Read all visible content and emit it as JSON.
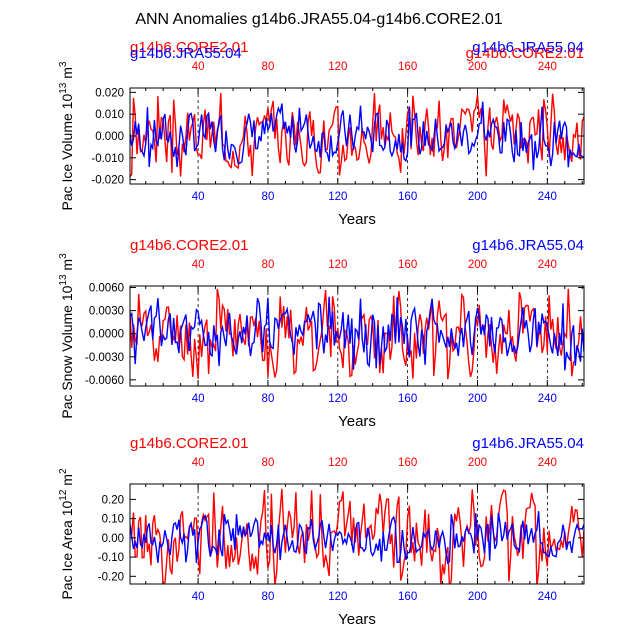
{
  "figure_title": "ANN Anomalies g14b6.JRA55.04-g14b6.CORE2.01",
  "colors": {
    "core": "#ff0000",
    "jra": "#0000ff",
    "axis": "#000000"
  },
  "chart_data": [
    {
      "type": "line",
      "ylabel": "Pac Ice Volume 10",
      "ylabel_exp": "13",
      "ylabel_unit": " m",
      "ylabel_unit_exp": "3",
      "xlabel": "Years",
      "xlim": [
        1,
        261
      ],
      "ylim": [
        -0.022,
        0.022
      ],
      "yticks": [
        -0.02,
        -0.01,
        0.0,
        0.01,
        0.02
      ],
      "ytick_labels": [
        "-0.020",
        "-0.010",
        "0.000",
        "0.010",
        "0.020"
      ],
      "xticks": [
        40,
        80,
        120,
        160,
        200,
        240
      ],
      "xtick_labels": [
        "40",
        "80",
        "120",
        "160",
        "200",
        "240"
      ],
      "vlines": [
        40,
        80,
        120,
        160,
        200,
        240
      ],
      "legend_left": "g14b6.CORE2.01",
      "legend_left_overlap": "g14b6.JRA55.04",
      "legend_right": "g14b6.JRA55.04",
      "legend_right_overlap": "g14b6.CORE2.01",
      "series": [
        {
          "name": "g14b6.CORE2.01",
          "color": "core",
          "amp": 0.02,
          "seed": 3
        },
        {
          "name": "g14b6.JRA55.04",
          "color": "jra",
          "amp": 0.016,
          "seed": 7
        }
      ]
    },
    {
      "type": "line",
      "ylabel": "Pac Snow Volume 10",
      "ylabel_exp": "13",
      "ylabel_unit": " m",
      "ylabel_unit_exp": "3",
      "xlabel": "Years",
      "xlim": [
        1,
        261
      ],
      "ylim": [
        -0.0068,
        0.0062
      ],
      "yticks": [
        -0.006,
        -0.003,
        0.0,
        0.003,
        0.006
      ],
      "ytick_labels": [
        "-0.0060",
        "-0.0030",
        "0.0000",
        "0.0030",
        "0.0060"
      ],
      "xticks": [
        40,
        80,
        120,
        160,
        200,
        240
      ],
      "xtick_labels": [
        "40",
        "80",
        "120",
        "160",
        "200",
        "240"
      ],
      "vlines": [
        40,
        80,
        120,
        160,
        200,
        240
      ],
      "legend_left": "g14b6.CORE2.01",
      "legend_right": "g14b6.JRA55.04",
      "series": [
        {
          "name": "g14b6.CORE2.01",
          "color": "core",
          "amp": 0.006,
          "seed": 11
        },
        {
          "name": "g14b6.JRA55.04",
          "color": "jra",
          "amp": 0.0048,
          "seed": 5
        }
      ]
    },
    {
      "type": "line",
      "ylabel": "Pac Ice Area 10",
      "ylabel_exp": "12",
      "ylabel_unit": " m",
      "ylabel_unit_exp": "2",
      "xlabel": "Years",
      "xlim": [
        1,
        261
      ],
      "ylim": [
        -0.24,
        0.28
      ],
      "yticks": [
        -0.2,
        -0.1,
        0.0,
        0.1,
        0.2
      ],
      "ytick_labels": [
        "-0.20",
        "-0.10",
        "0.00",
        "0.10",
        "0.20"
      ],
      "xticks": [
        40,
        80,
        120,
        160,
        200,
        240
      ],
      "xtick_labels": [
        "40",
        "80",
        "120",
        "160",
        "200",
        "240"
      ],
      "vlines": [
        40,
        80,
        120,
        160,
        200,
        240
      ],
      "legend_left": "g14b6.CORE2.01",
      "legend_right": "g14b6.JRA55.04",
      "series": [
        {
          "name": "g14b6.CORE2.01",
          "color": "core",
          "amp": 0.27,
          "seed": 13
        },
        {
          "name": "g14b6.JRA55.04",
          "color": "jra",
          "amp": 0.14,
          "seed": 17
        }
      ]
    }
  ]
}
